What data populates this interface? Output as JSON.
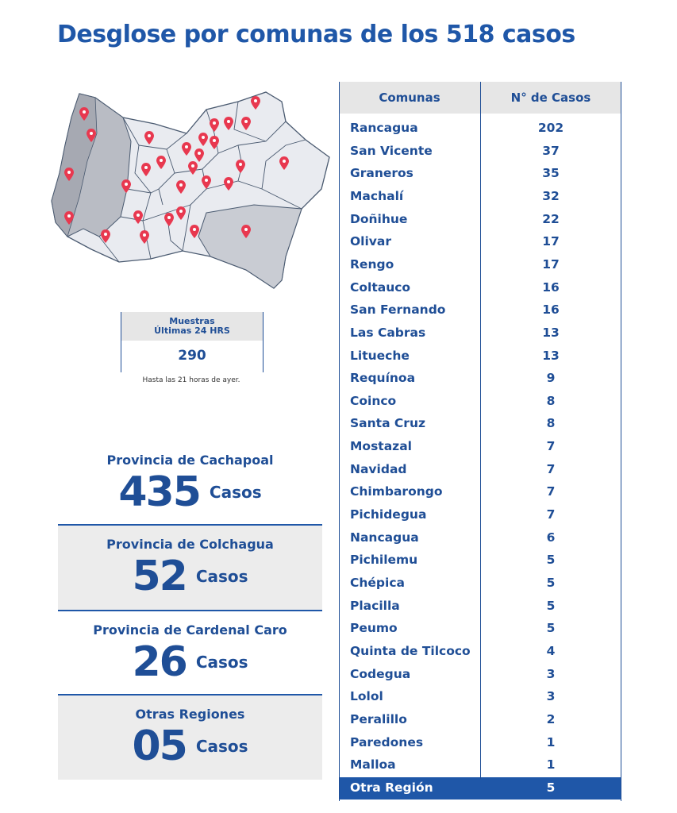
{
  "title": "Desglose por comunas de los 518 casos",
  "muestras": {
    "label_line1": "Muestras",
    "label_line2": "Últimas 24 HRS",
    "value": "290",
    "note": "Hasta las 21 horas de ayer."
  },
  "provinces": [
    {
      "name": "Provincia de Cachapoal",
      "count": "435",
      "unit": "Casos"
    },
    {
      "name": "Provincia de Colchagua",
      "count": "52",
      "unit": "Casos"
    },
    {
      "name": "Provincia de Cardenal Caro",
      "count": "26",
      "unit": "Casos"
    },
    {
      "name": "Otras Regiones",
      "count": "05",
      "unit": "Casos"
    }
  ],
  "table": {
    "headers": [
      "Comunas",
      "N° de Casos"
    ],
    "rows": [
      [
        "Rancagua",
        "202"
      ],
      [
        "San Vicente",
        "37"
      ],
      [
        "Graneros",
        "35"
      ],
      [
        "Machalí",
        "32"
      ],
      [
        "Doñihue",
        "22"
      ],
      [
        "Olivar",
        "17"
      ],
      [
        "Rengo",
        "17"
      ],
      [
        "Coltauco",
        "16"
      ],
      [
        "San Fernando",
        "16"
      ],
      [
        "Las Cabras",
        "13"
      ],
      [
        "Litueche",
        "13"
      ],
      [
        "Requínoa",
        "9"
      ],
      [
        "Coinco",
        "8"
      ],
      [
        "Santa Cruz",
        "8"
      ],
      [
        "Mostazal",
        "7"
      ],
      [
        "Navidad",
        "7"
      ],
      [
        "Chimbarongo",
        "7"
      ],
      [
        "Pichidegua",
        "7"
      ],
      [
        "Nancagua",
        "6"
      ],
      [
        "Pichilemu",
        "5"
      ],
      [
        "Chépica",
        "5"
      ],
      [
        "Placilla",
        "5"
      ],
      [
        "Peumo",
        "5"
      ],
      [
        "Quinta de Tilcoco",
        "4"
      ],
      [
        "Codegua",
        "3"
      ],
      [
        "Lolol",
        "3"
      ],
      [
        "Peralillo",
        "2"
      ],
      [
        "Paredones",
        "1"
      ],
      [
        "Malloa",
        "1"
      ],
      [
        "Otra Región",
        "5"
      ]
    ]
  },
  "colors": {
    "primary": "#1f57a8",
    "pin": "#e8384f",
    "grey": "#ececec"
  }
}
